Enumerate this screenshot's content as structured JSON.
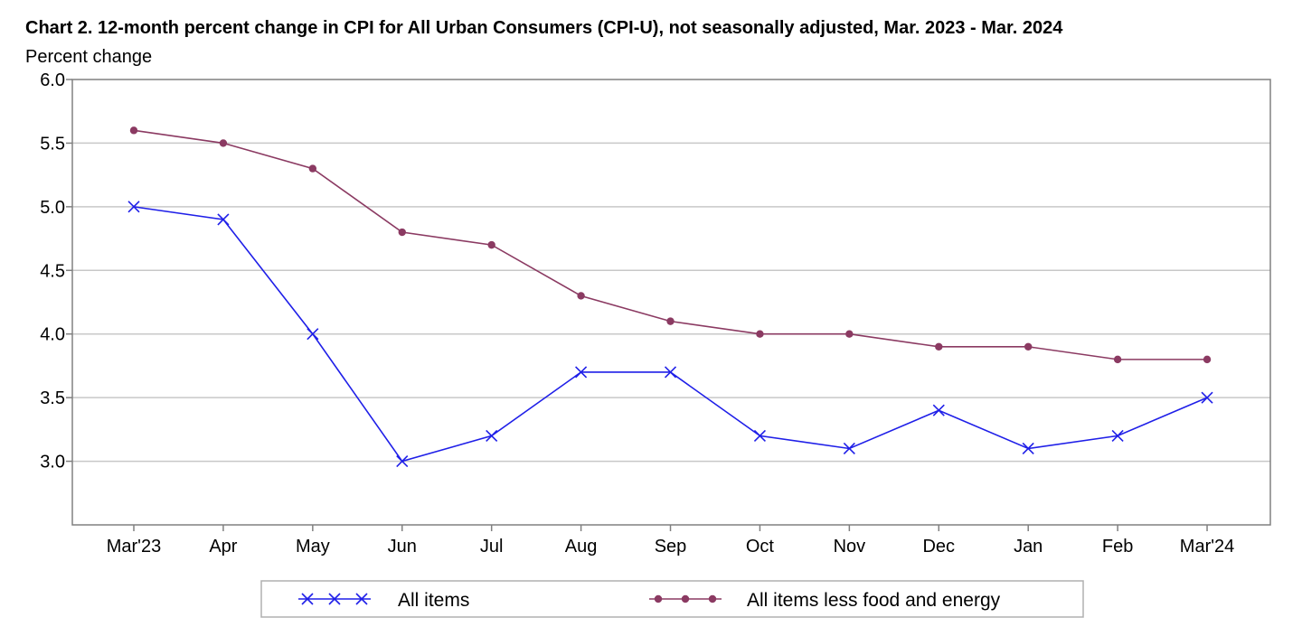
{
  "chart_data": {
    "type": "line",
    "title": "Chart 2. 12-month percent change in CPI for All Urban Consumers (CPI-U), not seasonally adjusted, Mar. 2023 - Mar. 2024",
    "ylabel": "Percent change",
    "xlabel": "",
    "categories": [
      "Mar'23",
      "Apr",
      "May",
      "Jun",
      "Jul",
      "Aug",
      "Sep",
      "Oct",
      "Nov",
      "Dec",
      "Jan",
      "Feb",
      "Mar'24"
    ],
    "ylim": [
      2.5,
      6.0
    ],
    "yticks": [
      "3.0",
      "3.5",
      "4.0",
      "4.5",
      "5.0",
      "5.5",
      "6.0"
    ],
    "grid": true,
    "legend_position": "bottom",
    "series": [
      {
        "name": "All items",
        "color": "#1f1fe8",
        "marker": "x",
        "values": [
          5.0,
          4.9,
          4.0,
          3.0,
          3.2,
          3.7,
          3.7,
          3.2,
          3.1,
          3.4,
          3.1,
          3.2,
          3.5
        ]
      },
      {
        "name": "All items less food and energy",
        "color": "#8b3a62",
        "marker": "circle",
        "values": [
          5.6,
          5.5,
          5.3,
          4.8,
          4.7,
          4.3,
          4.1,
          4.0,
          4.0,
          3.9,
          3.9,
          3.8,
          3.8
        ]
      }
    ]
  }
}
